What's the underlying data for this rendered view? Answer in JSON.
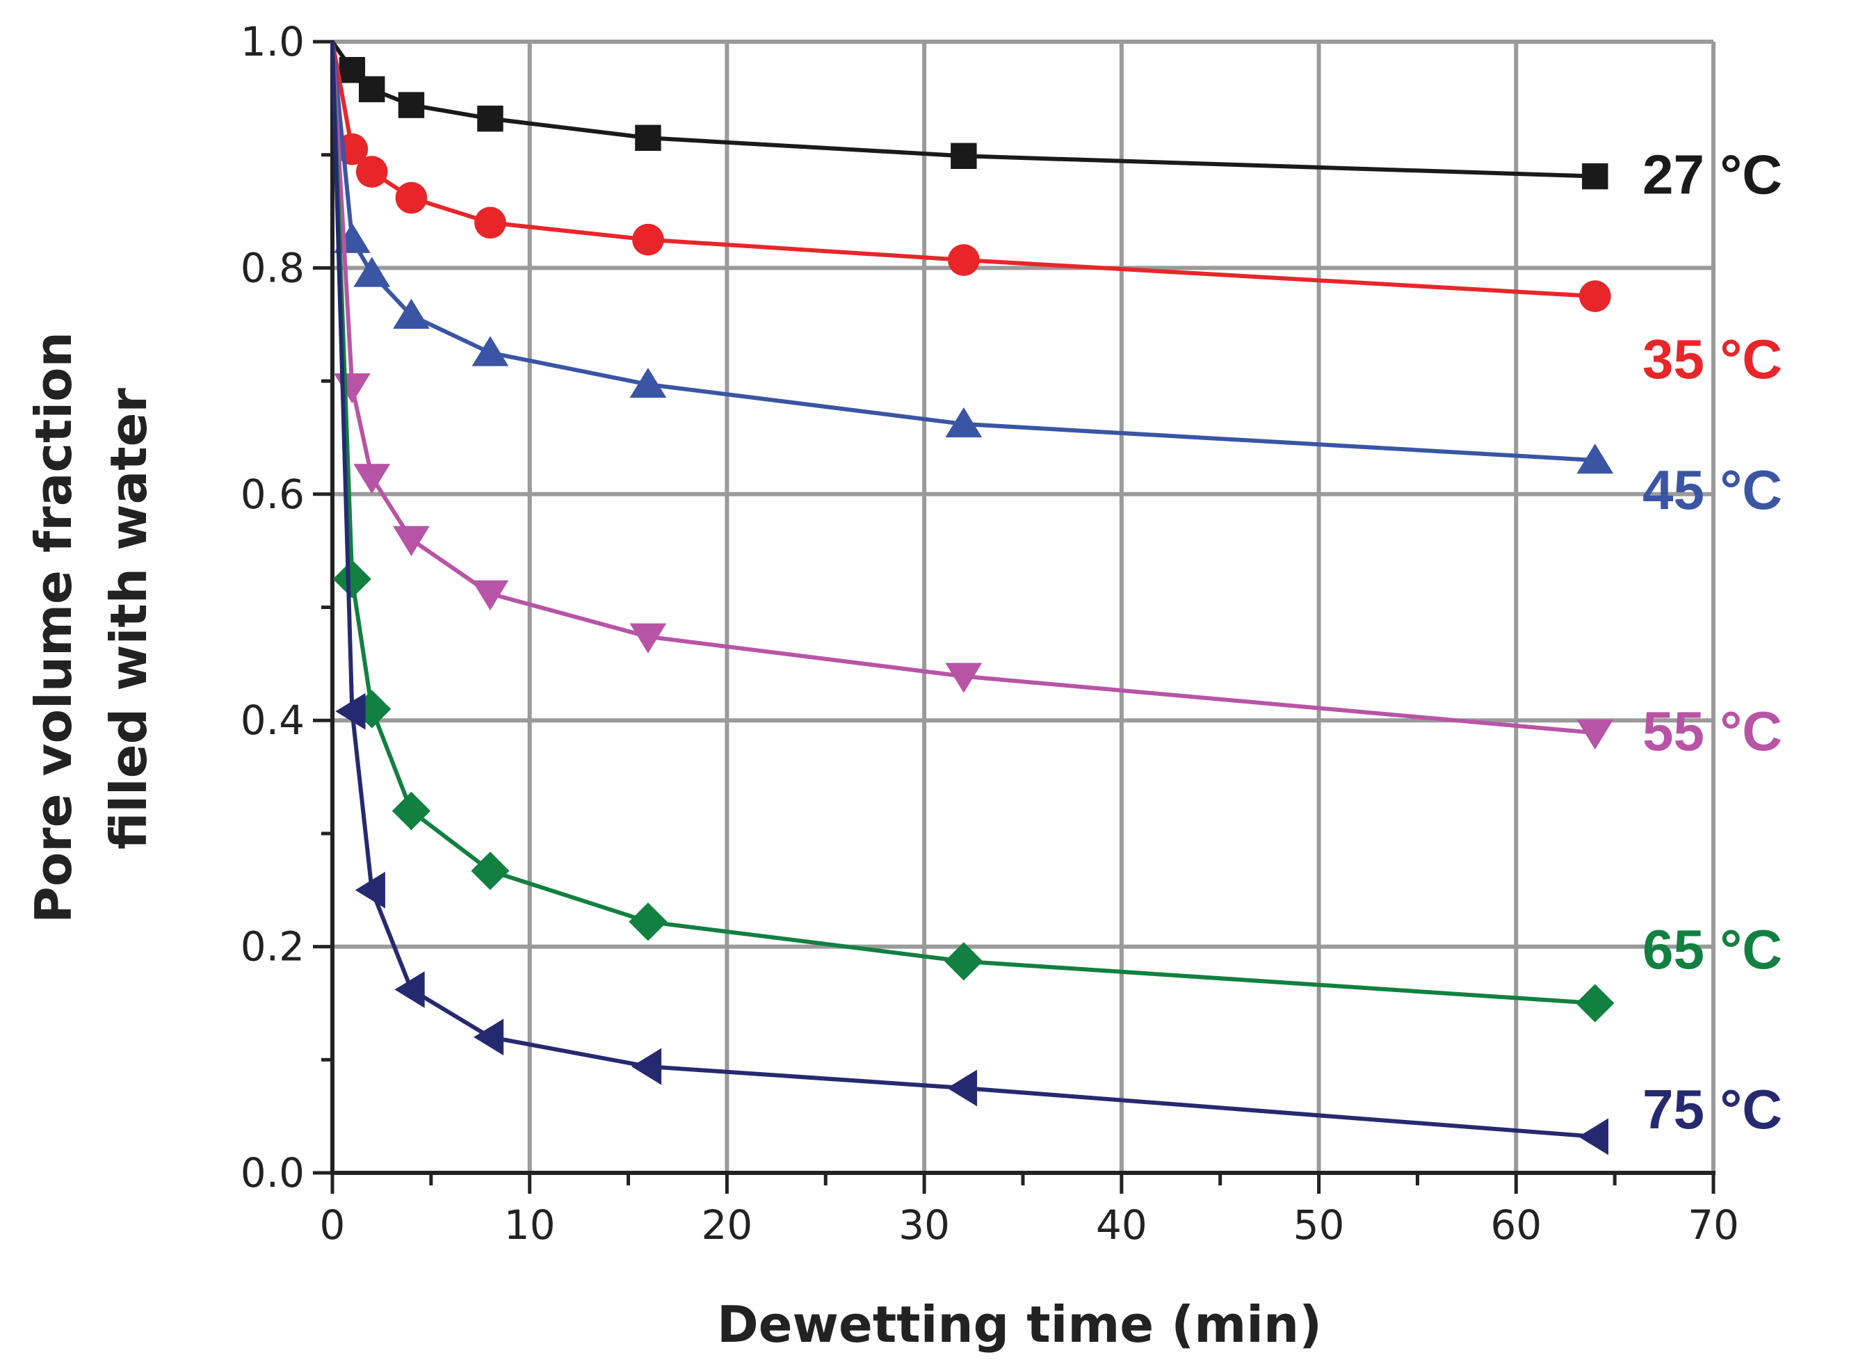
{
  "chart_data": {
    "type": "line",
    "title": "",
    "xlabel": "Dewetting time (min)",
    "ylabel_lines": [
      "Pore volume fraction",
      "filled with water"
    ],
    "xlim": [
      0,
      70
    ],
    "ylim": [
      0.0,
      1.0
    ],
    "x_ticks": [
      0,
      10,
      20,
      30,
      40,
      50,
      60,
      70
    ],
    "x_tick_labels": [
      "0",
      "10",
      "20",
      "30",
      "40",
      "50",
      "60",
      "70"
    ],
    "y_ticks": [
      0.0,
      0.2,
      0.4,
      0.6,
      0.8,
      1.0
    ],
    "y_tick_labels": [
      "0.0",
      "0.2",
      "0.4",
      "0.6",
      "0.8",
      "1.0"
    ],
    "x_grid": [
      10,
      20,
      30,
      40,
      50,
      60,
      70
    ],
    "y_grid": [
      0.2,
      0.4,
      0.6,
      0.8,
      1.0
    ],
    "grid": true,
    "series": [
      {
        "name": "27 °C",
        "label": "27 °C",
        "color": "#1a1a1a",
        "marker": "square",
        "x": [
          0,
          1,
          2,
          4,
          8,
          16,
          32,
          64
        ],
        "y": [
          1.0,
          0.975,
          0.958,
          0.944,
          0.932,
          0.915,
          0.899,
          0.881
        ]
      },
      {
        "name": "35 °C",
        "label": "35 °C",
        "color": "#e8262a",
        "marker": "circle",
        "x": [
          0,
          1,
          2,
          4,
          8,
          16,
          32,
          64
        ],
        "y": [
          1.0,
          0.905,
          0.885,
          0.862,
          0.84,
          0.825,
          0.807,
          0.775
        ]
      },
      {
        "name": "45 °C",
        "label": "45 °C",
        "color": "#3a55a4",
        "marker": "triangle-up",
        "x": [
          0,
          1,
          2,
          4,
          8,
          16,
          32,
          64
        ],
        "y": [
          1.0,
          0.825,
          0.795,
          0.758,
          0.725,
          0.697,
          0.662,
          0.63
        ]
      },
      {
        "name": "55 °C",
        "label": "55 °C",
        "color": "#b854a6",
        "marker": "triangle-down",
        "x": [
          0,
          1,
          2,
          4,
          8,
          16,
          32,
          64
        ],
        "y": [
          1.0,
          0.695,
          0.615,
          0.56,
          0.512,
          0.474,
          0.439,
          0.389
        ]
      },
      {
        "name": "65 °C",
        "label": "65 °C",
        "color": "#118040",
        "marker": "diamond",
        "x": [
          0,
          1,
          2,
          4,
          8,
          16,
          32,
          64
        ],
        "y": [
          1.0,
          0.525,
          0.41,
          0.32,
          0.267,
          0.222,
          0.187,
          0.15
        ]
      },
      {
        "name": "75 °C",
        "label": "75 °C",
        "color": "#252a70",
        "marker": "triangle-left",
        "x": [
          0,
          1,
          2,
          4,
          8,
          16,
          32,
          64
        ],
        "y": [
          1.0,
          0.408,
          0.25,
          0.162,
          0.12,
          0.094,
          0.075,
          0.032
        ]
      }
    ]
  }
}
